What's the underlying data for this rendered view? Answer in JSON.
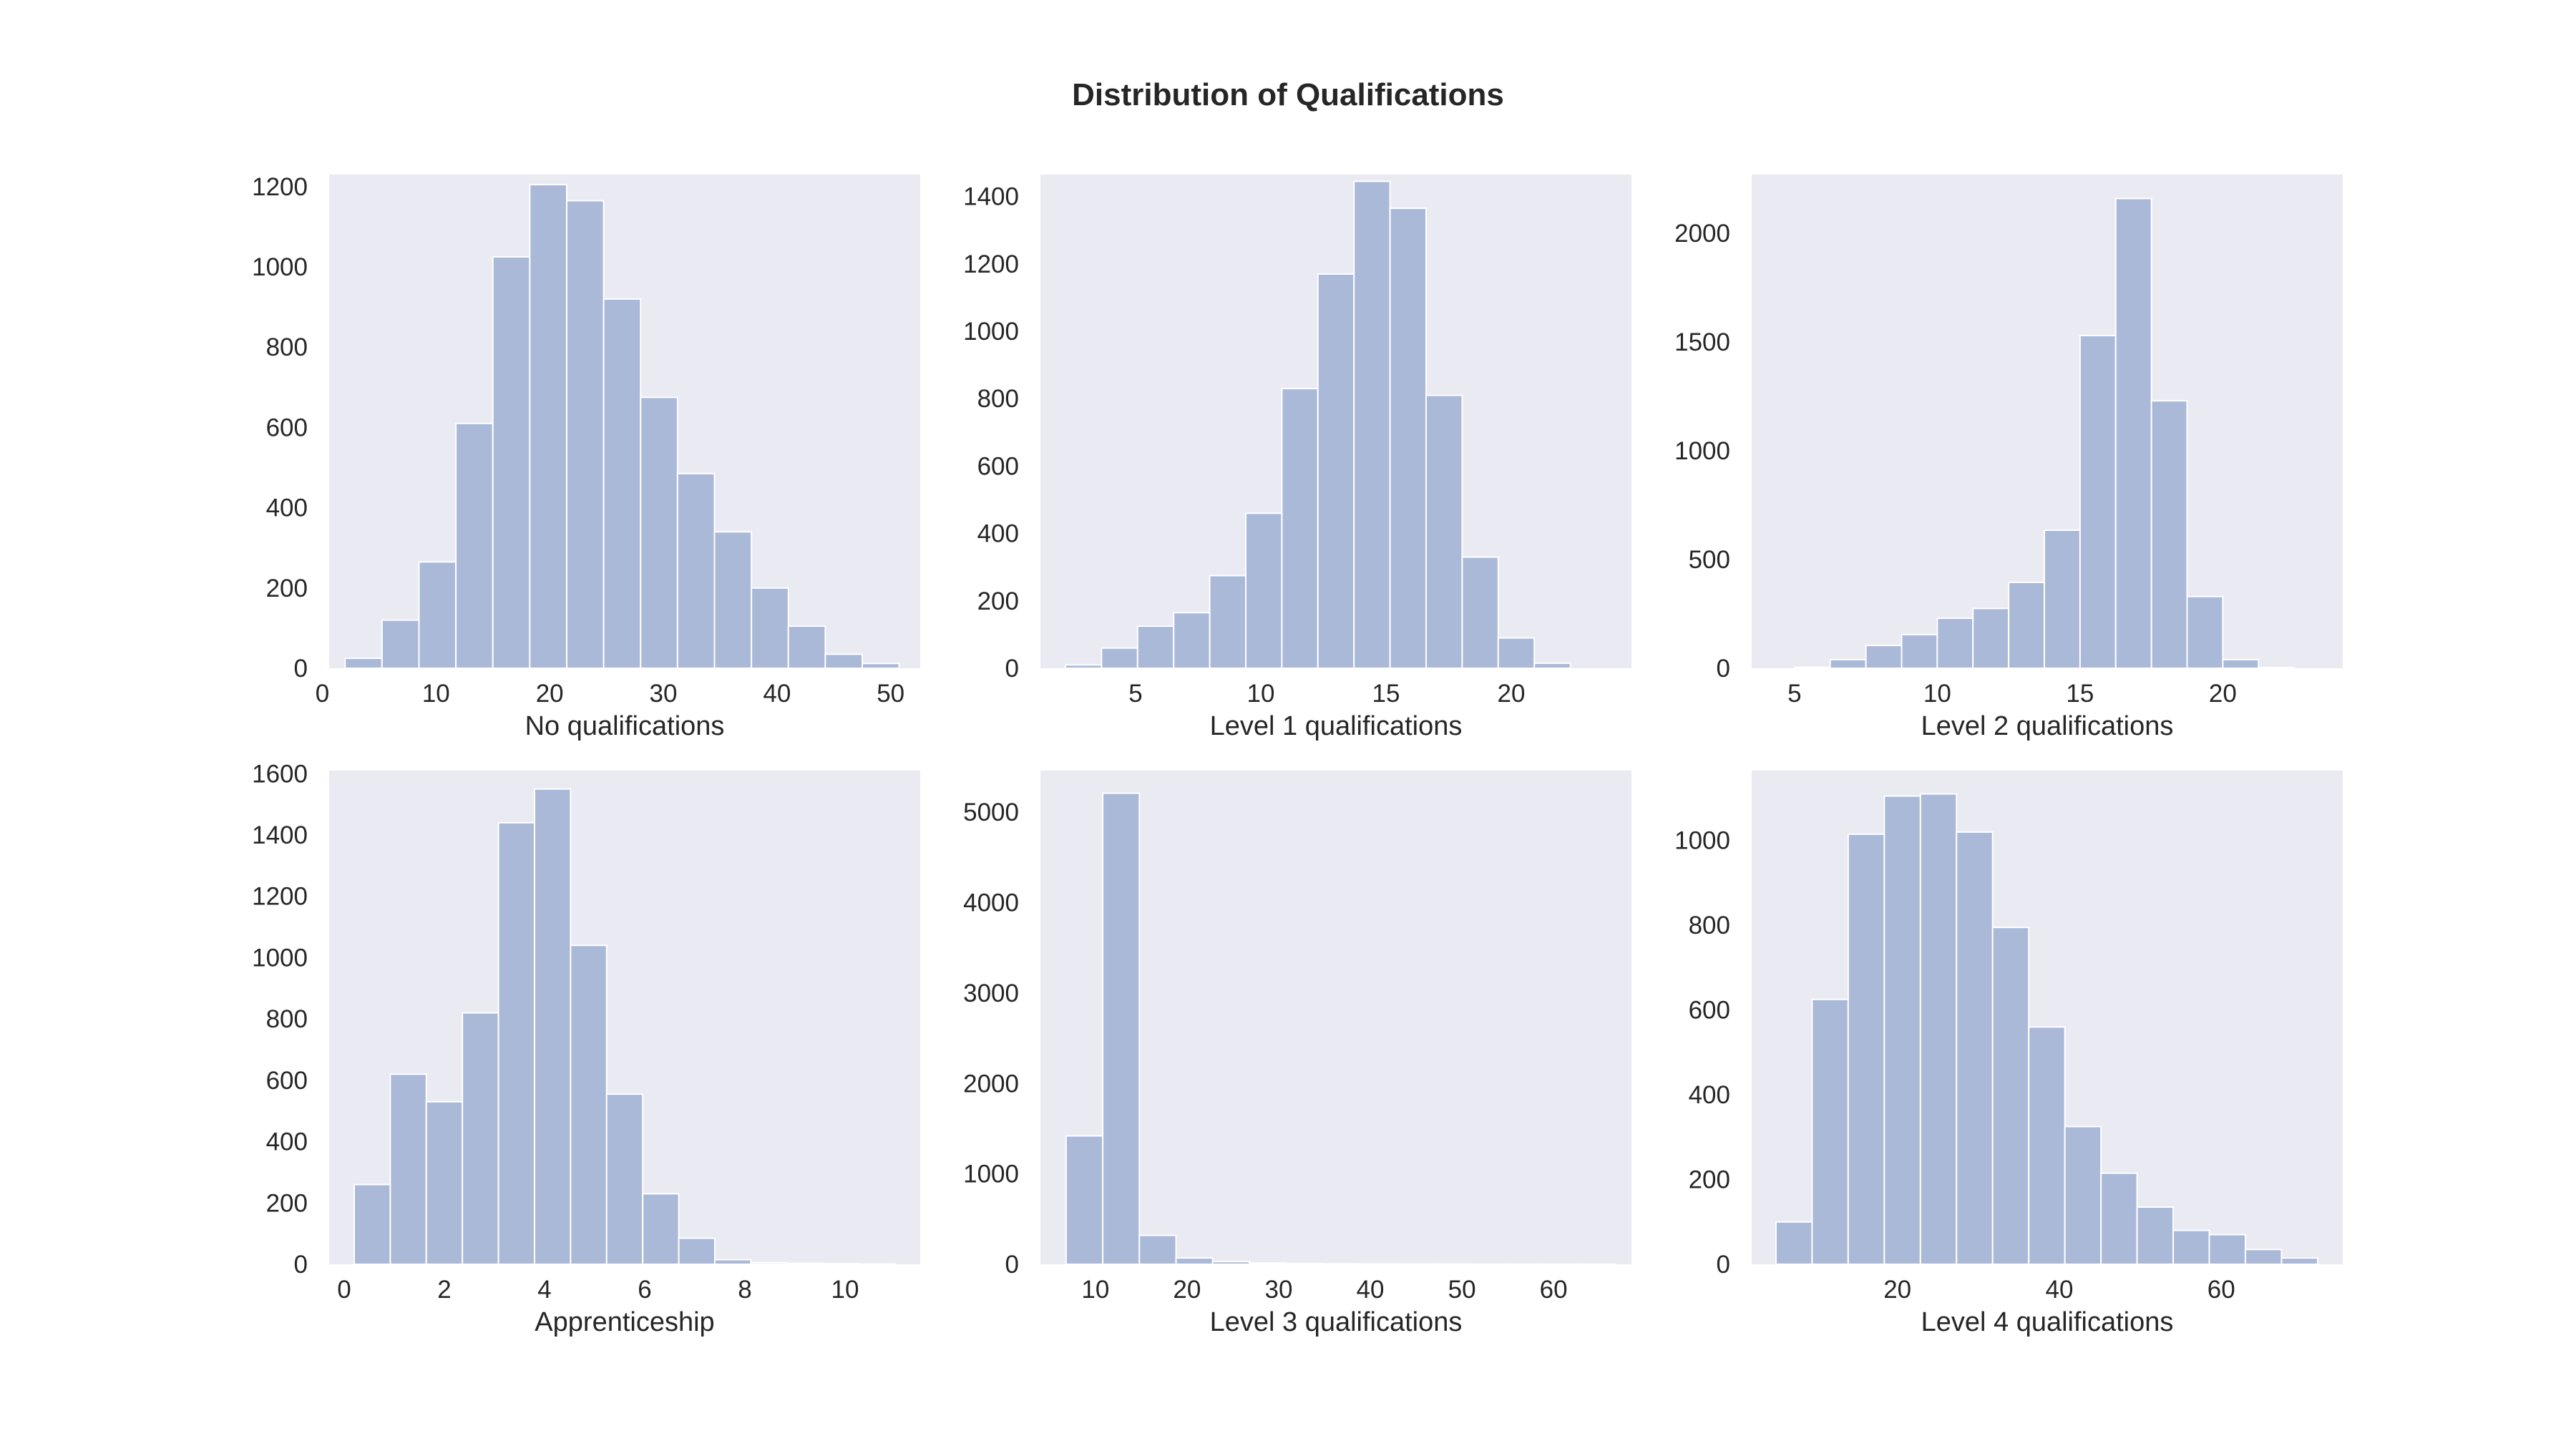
{
  "figure": {
    "title": "Distribution of Qualifications"
  },
  "colors": {
    "background": "#eaeaf2",
    "bar": "#aab9d8",
    "bar_edge": "#ffffff",
    "text": "#262626"
  },
  "chart_data": [
    {
      "type": "bar",
      "title": "",
      "xlabel": "No qualifications",
      "ylabel": "",
      "xlim": [
        0.6,
        52.6
      ],
      "ylim": [
        0,
        1230
      ],
      "xticks": [
        0,
        10,
        20,
        30,
        40,
        50
      ],
      "yticks": [
        0,
        200,
        400,
        600,
        800,
        1000,
        1200
      ],
      "bin_edges": [
        2.0,
        5.25,
        8.5,
        11.75,
        15.0,
        18.25,
        21.5,
        24.75,
        28.0,
        31.25,
        34.5,
        37.75,
        41.0,
        44.25,
        47.5,
        50.75
      ],
      "values": [
        25,
        120,
        265,
        610,
        1025,
        1205,
        1165,
        920,
        675,
        485,
        340,
        200,
        105,
        35,
        12
      ]
    },
    {
      "type": "bar",
      "title": "",
      "xlabel": "Level 1 qualifications",
      "ylabel": "",
      "xlim": [
        1.2,
        24.8
      ],
      "ylim": [
        0,
        1465
      ],
      "xticks": [
        5,
        10,
        15,
        20
      ],
      "yticks": [
        0,
        200,
        400,
        600,
        800,
        1000,
        1200,
        1400
      ],
      "bin_edges": [
        2.2,
        3.64,
        5.08,
        6.52,
        7.96,
        9.4,
        10.84,
        12.28,
        13.72,
        15.16,
        16.6,
        18.04,
        19.48,
        20.92,
        22.36
      ],
      "values": [
        10,
        60,
        125,
        165,
        275,
        460,
        830,
        1170,
        1445,
        1365,
        810,
        330,
        90,
        15
      ]
    },
    {
      "type": "bar",
      "title": "",
      "xlabel": "Level 2 qualifications",
      "ylabel": "",
      "xlim": [
        3.5,
        24.2
      ],
      "ylim": [
        0,
        2270
      ],
      "xticks": [
        5,
        10,
        15,
        20
      ],
      "yticks": [
        0,
        500,
        1000,
        1500,
        2000
      ],
      "bin_edges": [
        5.0,
        6.25,
        7.5,
        8.75,
        10.0,
        11.25,
        12.5,
        13.75,
        15.0,
        16.25,
        17.5,
        18.75,
        20.0,
        21.25,
        22.5
      ],
      "values": [
        5,
        40,
        105,
        155,
        230,
        275,
        395,
        635,
        1530,
        2160,
        1230,
        330,
        40,
        3
      ]
    },
    {
      "type": "bar",
      "title": "",
      "xlabel": "Apprenticeship",
      "ylabel": "",
      "xlim": [
        -0.3,
        11.5
      ],
      "ylim": [
        0,
        1610
      ],
      "xticks": [
        0,
        2,
        4,
        6,
        8,
        10
      ],
      "yticks": [
        0,
        200,
        400,
        600,
        800,
        1000,
        1200,
        1400,
        1600
      ],
      "bin_edges": [
        0.2,
        0.92,
        1.64,
        2.36,
        3.08,
        3.8,
        4.52,
        5.24,
        5.96,
        6.68,
        7.4,
        8.12,
        8.84,
        9.56,
        10.28,
        11.0
      ],
      "values": [
        260,
        620,
        530,
        820,
        1440,
        1550,
        1040,
        555,
        230,
        85,
        15,
        5,
        3,
        2,
        1
      ]
    },
    {
      "type": "bar",
      "title": "",
      "xlabel": "Level 3 qualifications",
      "ylabel": "",
      "xlim": [
        4.0,
        68.5
      ],
      "ylim": [
        0,
        5460
      ],
      "xticks": [
        10,
        20,
        30,
        40,
        50,
        60
      ],
      "yticks": [
        0,
        1000,
        2000,
        3000,
        4000,
        5000
      ],
      "bin_edges": [
        6.8,
        10.8,
        14.8,
        18.8,
        22.8,
        26.8,
        30.8,
        34.8,
        38.8,
        42.8,
        46.8,
        50.8,
        54.8,
        58.8,
        62.8,
        66.8
      ],
      "values": [
        1420,
        5210,
        320,
        70,
        30,
        15,
        8,
        5,
        3,
        2,
        2,
        1,
        1,
        1,
        1
      ]
    },
    {
      "type": "bar",
      "title": "",
      "xlabel": "Level 4 qualifications",
      "ylabel": "",
      "xlim": [
        2.0,
        75.0
      ],
      "ylim": [
        0,
        1165
      ],
      "xticks": [
        20,
        40,
        60
      ],
      "yticks": [
        0,
        200,
        400,
        600,
        800,
        1000
      ],
      "bin_edges": [
        5.0,
        9.46,
        13.92,
        18.38,
        22.84,
        27.3,
        31.76,
        36.22,
        40.68,
        45.14,
        49.6,
        54.06,
        58.52,
        62.98,
        67.44,
        71.9
      ],
      "values": [
        100,
        625,
        1015,
        1105,
        1110,
        1020,
        795,
        560,
        325,
        215,
        135,
        80,
        70,
        35,
        15
      ]
    }
  ]
}
